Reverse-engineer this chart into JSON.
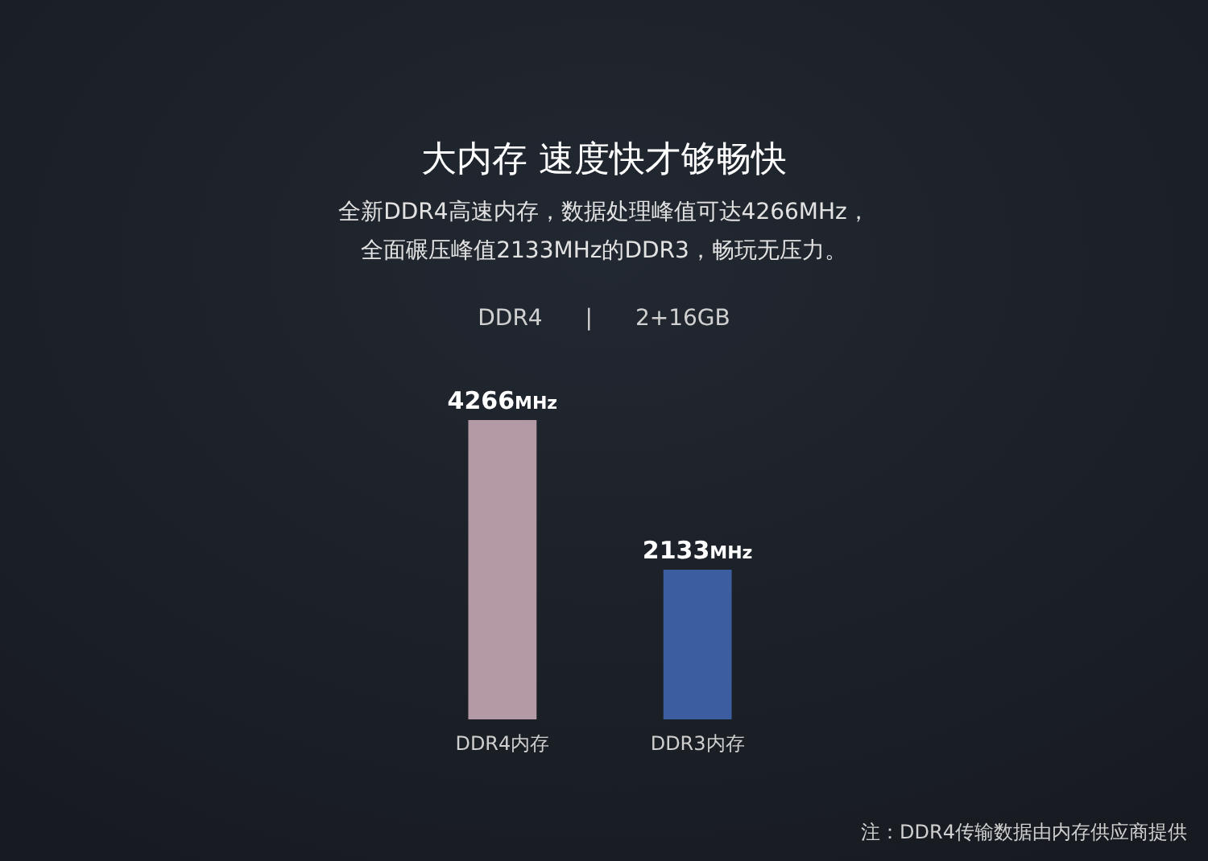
{
  "chart_data": {
    "type": "bar",
    "title": "大内存 速度快才够畅快",
    "subtitle": "全新DDR4高速内存，数据处理峰值可达4266MHz，全面碾压峰值2133MHz的DDR3，畅玩无压力。",
    "categories": [
      "DDR4内存",
      "DDR3内存"
    ],
    "values": [
      4266,
      2133
    ],
    "colors": [
      "#b49aa4",
      "#3c5d9f"
    ],
    "value_labels": [
      "4266MHz",
      "2133MHz"
    ],
    "annotations": [
      "DDR4 | 2+16GB",
      "注：DDR4传输数据由内存供应商提供"
    ]
  }
}
